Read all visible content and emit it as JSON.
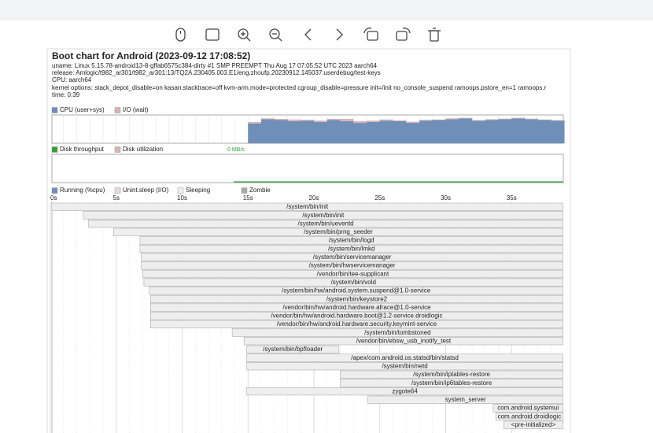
{
  "header": {
    "title": "Boot chart for Android (2023-09-12 17:08:52)",
    "uname": "uname: Linux 5.15.78-android13-8-gffab6575c384-dirty #1 SMP PREEMPT Thu Aug 17 07:05:52 UTC 2023 aarch64",
    "release": "release: Amlogic/t982_ar301/t982_ar301:13/TQ2A.230405.003.E1/eng.zhoufp.20230912.145037:userdebug/test-keys",
    "cpu": "CPU: aarch64",
    "kernel_options": "kernel options: stack_depot_disable=on kasan.stacktrace=off kvm-arm.mode=protected cgroup_disable=pressure init=/init no_console_suspend ramoops.pstore_en=1 ramoops.r",
    "time": "time: 0:39"
  },
  "cpu_chart": {
    "type": "bar",
    "x": [
      15,
      16,
      17,
      18,
      19,
      20,
      21,
      22,
      23,
      24,
      25,
      26,
      27,
      28,
      29,
      30,
      31,
      32,
      33,
      34,
      35,
      36,
      37,
      38
    ],
    "ylim": [
      0,
      100
    ],
    "series": [
      {
        "name": "CPU (user+sys)",
        "color": "#6f8fb8",
        "values": [
          70,
          85,
          82,
          78,
          80,
          75,
          82,
          78,
          72,
          75,
          80,
          78,
          72,
          80,
          82,
          85,
          88,
          80,
          82,
          85,
          88,
          85,
          82,
          80
        ]
      },
      {
        "name": "I/O (wait)",
        "color": "#d8b4b4",
        "values": [
          5,
          3,
          4,
          6,
          3,
          5,
          4,
          8,
          6,
          5,
          4,
          3,
          4,
          3,
          2,
          3,
          2,
          2,
          3,
          2,
          2,
          2,
          2,
          2
        ]
      }
    ]
  },
  "disk_chart": {
    "legend": [
      {
        "name": "Disk throughput",
        "color": "#33a033"
      },
      {
        "name": "Disk utilization",
        "color": "#d8b4b4"
      }
    ],
    "throughput_label": "0 MB/s"
  },
  "process_chart": {
    "legend": [
      {
        "name": "Running (%cpu)",
        "color": "#6f8fb8"
      },
      {
        "name": "Unint.sleep (I/O)",
        "color": "#e8d8d8"
      },
      {
        "name": "Sleeping",
        "color": "#eeeeee"
      },
      {
        "name": "Zombie",
        "color": "#aaaaaa"
      }
    ],
    "time_ticks": [
      {
        "value": 0,
        "label": "0s"
      },
      {
        "value": 5,
        "label": "5s"
      },
      {
        "value": 10,
        "label": "10s"
      },
      {
        "value": 15,
        "label": "15s"
      },
      {
        "value": 20,
        "label": "20s"
      },
      {
        "value": 25,
        "label": "25s"
      },
      {
        "value": 30,
        "label": "30s"
      },
      {
        "value": 35,
        "label": "35s"
      }
    ],
    "processes": [
      {
        "name": "/system/bin/init",
        "start": 0.1,
        "end": 38.9
      },
      {
        "name": "/system/bin/init",
        "start": 2.5,
        "end": 38.9
      },
      {
        "name": "/system/bin/ueventd",
        "start": 2.9,
        "end": 38.9
      },
      {
        "name": "/system/bin/prng_seeder",
        "start": 4.8,
        "end": 38.9
      },
      {
        "name": "/system/bin/logd",
        "start": 6.8,
        "end": 38.9
      },
      {
        "name": "/system/bin/lmkd",
        "start": 6.8,
        "end": 38.9
      },
      {
        "name": "/system/bin/servicemanager",
        "start": 6.9,
        "end": 38.9
      },
      {
        "name": "/system/bin/hwservicemanager",
        "start": 6.9,
        "end": 38.9
      },
      {
        "name": "/vendor/bin/tee-supplicant",
        "start": 7.0,
        "end": 38.9
      },
      {
        "name": "/system/bin/vold",
        "start": 7.1,
        "end": 38.9
      },
      {
        "name": "/system/bin/hw/android.system.suspend@1.0-service",
        "start": 7.5,
        "end": 38.9
      },
      {
        "name": "/system/bin/keystore2",
        "start": 7.6,
        "end": 38.9
      },
      {
        "name": "/vendor/bin/hw/android.hardware.afrace@1.0-service",
        "start": 7.6,
        "end": 38.9
      },
      {
        "name": "/vendor/bin/hw/android.hardware.boot@1.2-service.droidlogic",
        "start": 7.6,
        "end": 38.9
      },
      {
        "name": "/vendor/bin/hw/android.hardware.security.keymint-service",
        "start": 7.6,
        "end": 38.9
      },
      {
        "name": "/system/bin/tombstoned",
        "start": 13.8,
        "end": 38.9
      },
      {
        "name": "/vendor/bin/ebsw_usb_inotify_test",
        "start": 14.7,
        "end": 38.9
      },
      {
        "name": "/system/bin/bpfloader",
        "start": 14.9,
        "end": 21.9
      },
      {
        "name": "/apex/com.android.os.statsd/bin/statsd",
        "start": 14.9,
        "end": 38.9
      },
      {
        "name": "/system/bin/netd",
        "start": 14.9,
        "end": 38.9
      },
      {
        "name": "/system/bin/iptables-restore",
        "start": 22.0,
        "end": 38.9
      },
      {
        "name": "/system/bin/ip6tables-restore",
        "start": 22.0,
        "end": 38.9
      },
      {
        "name": "zygote64",
        "start": 14.9,
        "end": 38.9
      },
      {
        "name": "system_server",
        "start": 24.1,
        "end": 38.9
      },
      {
        "name": "com.android.systemui",
        "start": 33.6,
        "end": 38.9
      },
      {
        "name": "com.android.droidlogic",
        "start": 33.8,
        "end": 38.9
      },
      {
        "name": "<pre-initialized>",
        "start": 34.4,
        "end": 38.9
      }
    ]
  }
}
